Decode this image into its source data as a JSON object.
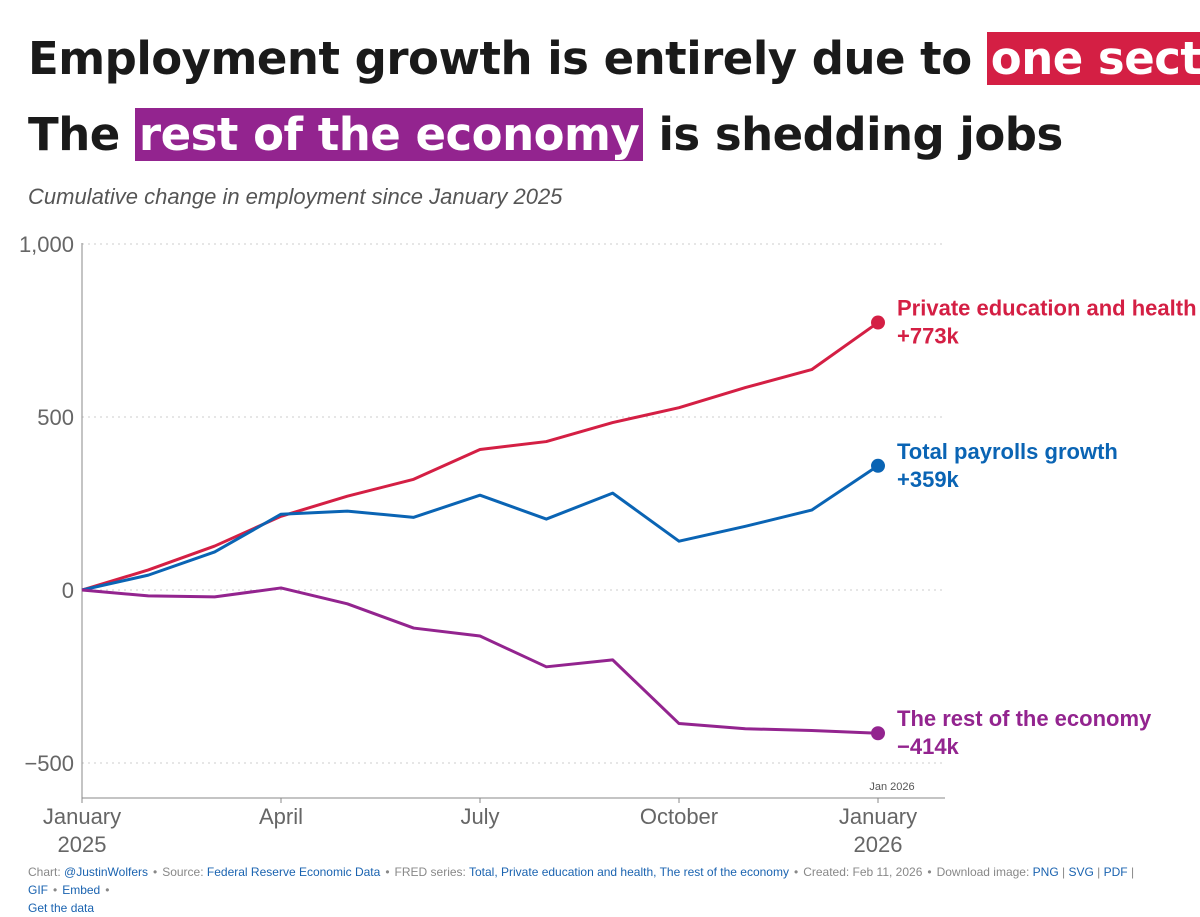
{
  "title": {
    "line1_prefix": "Employment growth is entirely due to ",
    "line1_highlight": "one sector",
    "line2_prefix": "The ",
    "line2_highlight": "rest of the economy",
    "line2_suffix": " is shedding jobs"
  },
  "subtitle": "Cumulative change in employment since January 2025",
  "colors": {
    "red": "#d41f44",
    "blue": "#0a64b4",
    "purple": "#93248f"
  },
  "chart_data": {
    "type": "line",
    "x": [
      "2025-01",
      "2025-02",
      "2025-03",
      "2025-04",
      "2025-05",
      "2025-06",
      "2025-07",
      "2025-08",
      "2025-09",
      "2025-10",
      "2025-11",
      "2025-12",
      "2026-01"
    ],
    "ylim": [
      -600,
      1000
    ],
    "yticks": [
      1000,
      500,
      0,
      -500
    ],
    "ytick_labels": [
      "1,000",
      "500",
      "0",
      "−500"
    ],
    "xticks": [
      {
        "x": "2025-01",
        "label": [
          "January",
          "2025"
        ]
      },
      {
        "x": "2025-04",
        "label": [
          "April"
        ]
      },
      {
        "x": "2025-07",
        "label": [
          "July"
        ]
      },
      {
        "x": "2025-10",
        "label": [
          "October"
        ]
      },
      {
        "x": "2026-01",
        "label": [
          "January",
          "2026"
        ]
      }
    ],
    "last_date_label": "Jan 2026",
    "grid": "horizontal dotted",
    "series": [
      {
        "name": "Private education and health",
        "end_label": "+773k",
        "color": "#d41f44",
        "values": [
          0,
          58,
          127,
          213,
          271,
          320,
          406,
          429,
          484,
          527,
          585,
          637,
          773
        ]
      },
      {
        "name": "Total payrolls growth",
        "end_label": "+359k",
        "color": "#0a64b4",
        "values": [
          0,
          43,
          110,
          219,
          228,
          210,
          274,
          205,
          280,
          141,
          184,
          231,
          359
        ]
      },
      {
        "name": "The rest of the economy",
        "end_label": "−414k",
        "color": "#93248f",
        "values": [
          0,
          -17,
          -20,
          6,
          -40,
          -110,
          -133,
          -222,
          -202,
          -386,
          -401,
          -406,
          -414
        ]
      }
    ]
  },
  "footer": {
    "chart_label": "Chart: ",
    "chart_author": "@JustinWolfers",
    "source_label": "Source: ",
    "source": "Federal Reserve Economic Data",
    "series_label": "FRED series: ",
    "series": "Total, Private education and health, The rest of the economy",
    "created": "Created: Feb 11, 2026",
    "download_label": "Download image: ",
    "png": "PNG",
    "svg": "SVG",
    "pdf": "PDF",
    "gif": "GIF",
    "embed": "Embed",
    "get_data": "Get the data"
  }
}
